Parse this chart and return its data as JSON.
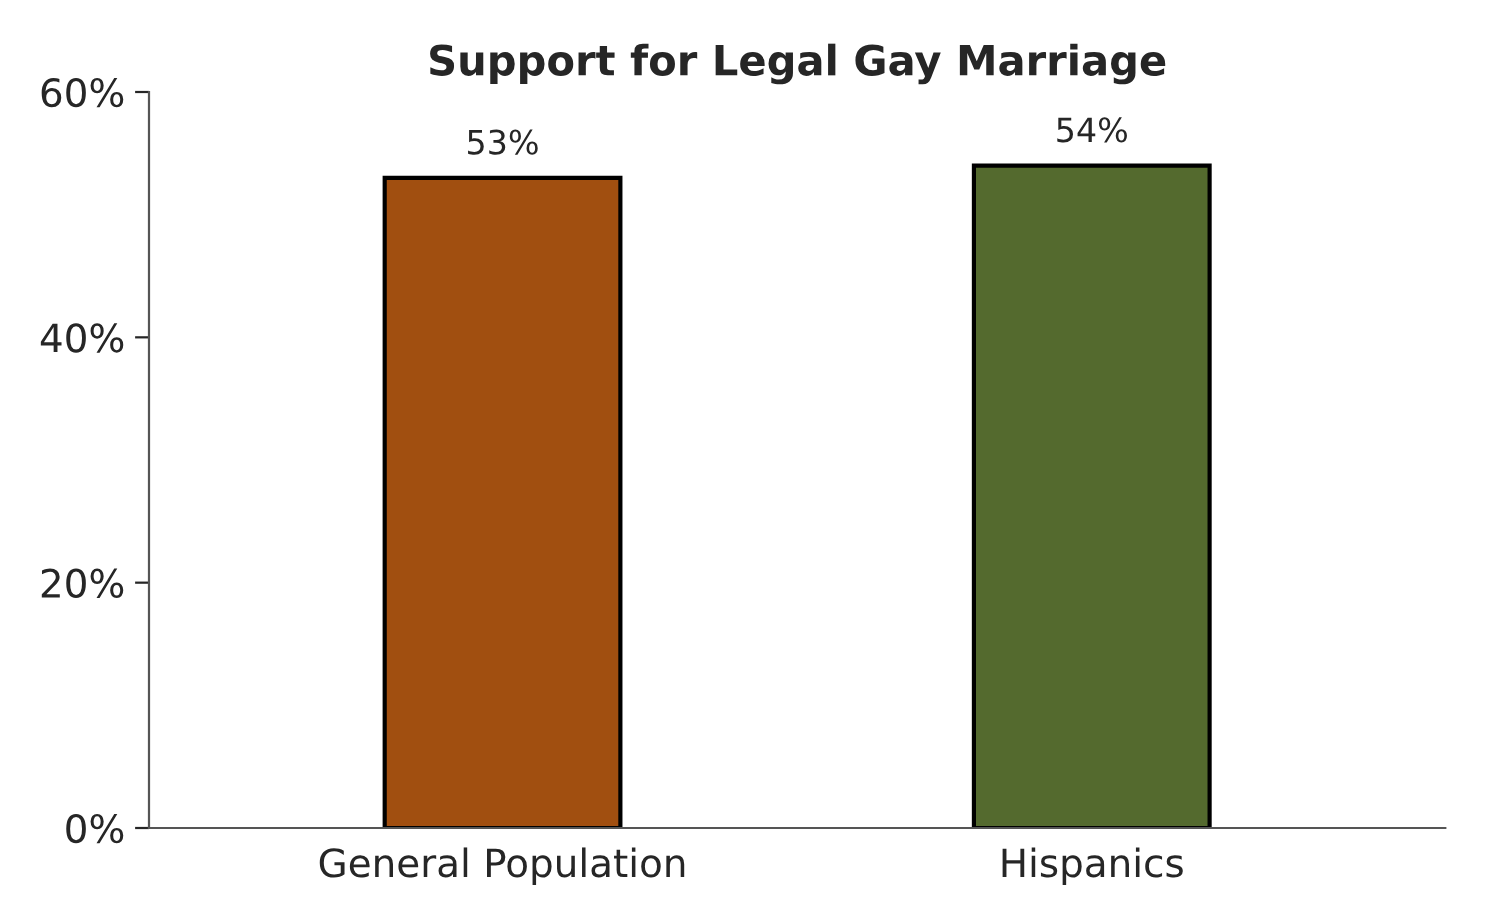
{
  "chart_data": {
    "type": "bar",
    "title": "Support for Legal Gay Marriage",
    "categories": [
      "General Population",
      "Hispanics"
    ],
    "values": [
      53,
      54
    ],
    "colors": [
      "#a14f10",
      "#546a2e"
    ],
    "value_labels": [
      "53%",
      "54%"
    ],
    "ylim": [
      0,
      60
    ],
    "yticks": [
      {
        "value": 0,
        "label": "0%"
      },
      {
        "value": 20,
        "label": "20%"
      },
      {
        "value": 40,
        "label": "40%"
      },
      {
        "value": 60,
        "label": "60%"
      }
    ],
    "grid": false,
    "legend": false
  }
}
